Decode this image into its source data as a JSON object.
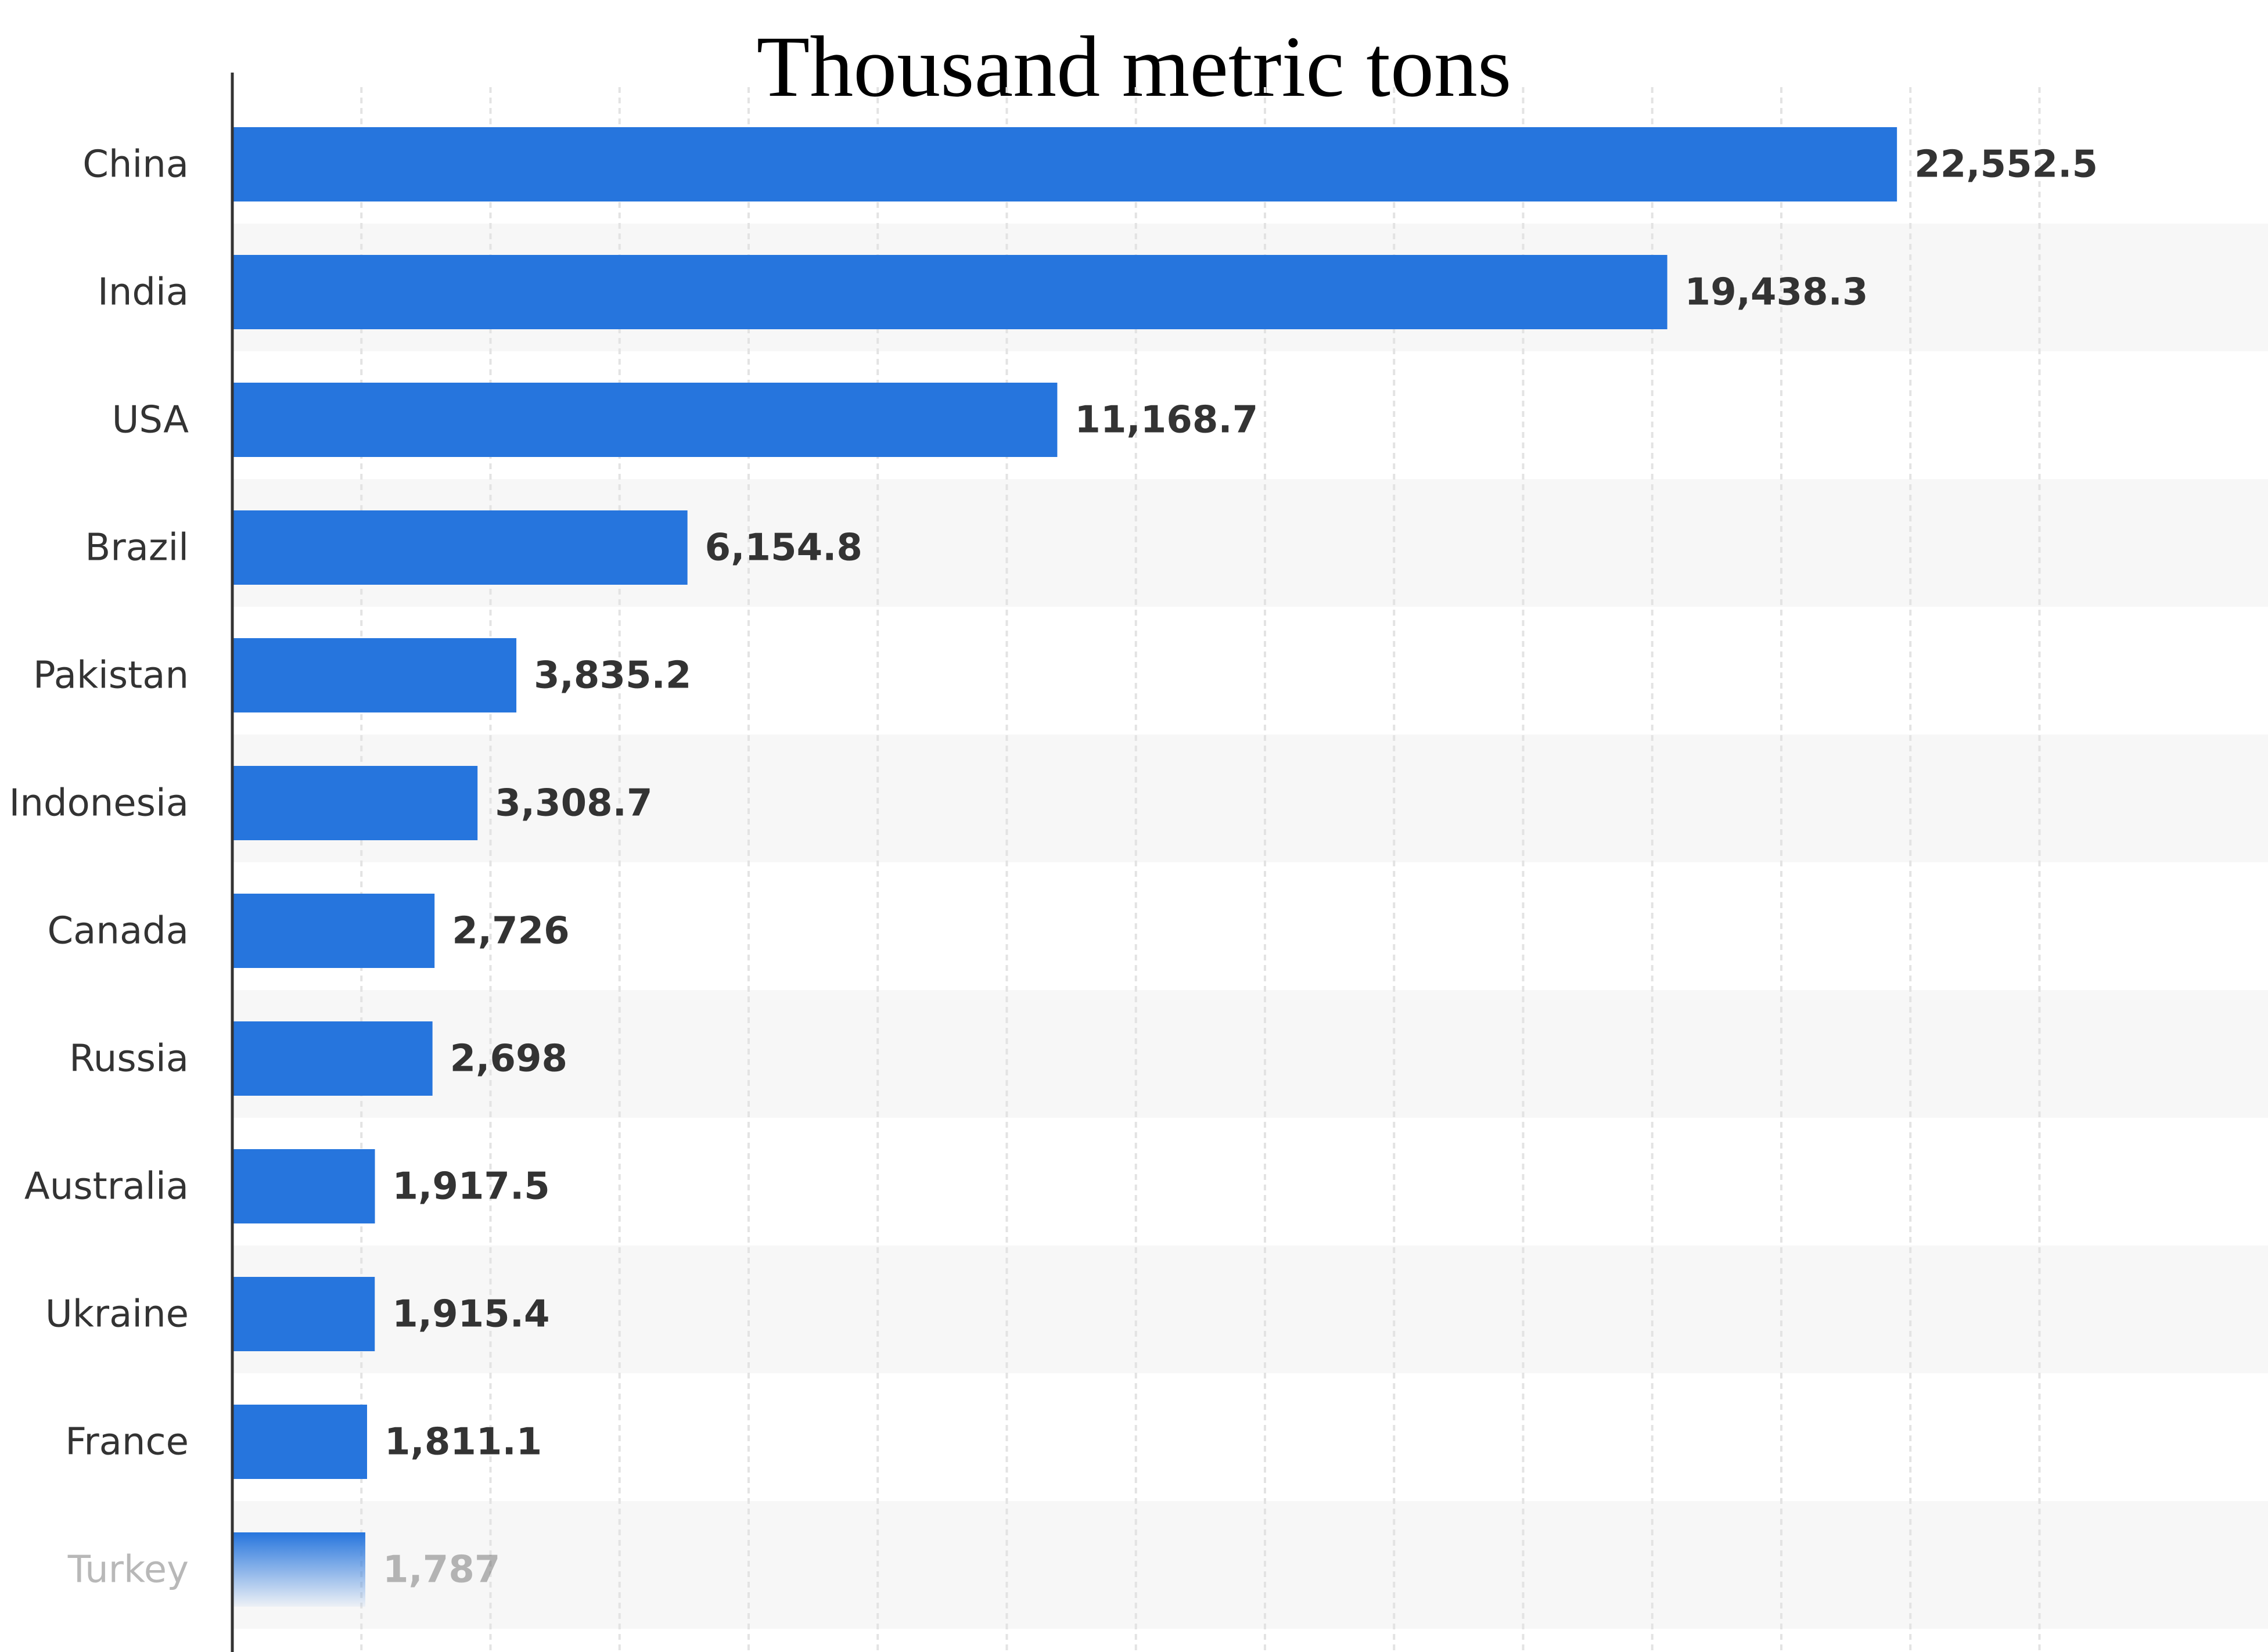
{
  "chart_data": {
    "type": "bar",
    "orientation": "horizontal",
    "title": "Thousand metric tons",
    "xlabel": "",
    "ylabel": "",
    "categories": [
      "China",
      "India",
      "USA",
      "Brazil",
      "Pakistan",
      "Indonesia",
      "Canada",
      "Russia",
      "Australia",
      "Ukraine",
      "France",
      "Turkey"
    ],
    "values": [
      22552.5,
      19438.3,
      11168.7,
      6154.8,
      3835.2,
      3308.7,
      2726,
      2698,
      1917.5,
      1915.4,
      1811.1,
      1787
    ],
    "value_labels": [
      "22,552.5",
      "19,438.3",
      "11,168.7",
      "6,154.8",
      "3,835.2",
      "3,308.7",
      "2,726",
      "2,698",
      "1,917.5",
      "1,915.4",
      "1,811.1",
      "1,787"
    ],
    "xlim": [
      0,
      25000
    ],
    "grid": true,
    "legend": "none",
    "colors": {
      "bar": "#2675dd",
      "grid": "#e3e3e3",
      "band": "#f7f7f7",
      "axis": "#333333",
      "text": "#333333"
    }
  }
}
